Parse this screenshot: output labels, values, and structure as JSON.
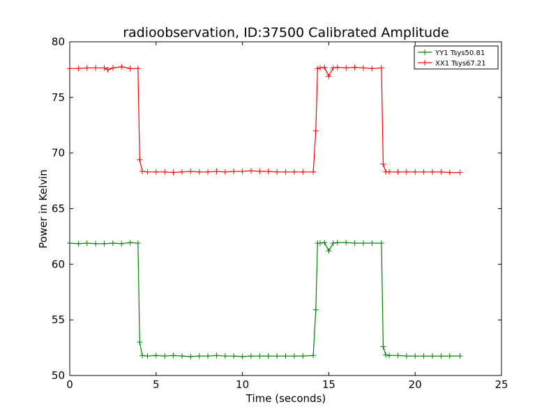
{
  "chart_data": {
    "type": "line",
    "title": "radioobservation, ID:37500 Calibrated Amplitude",
    "xlabel": "Time (seconds)",
    "ylabel": "Power in Kelvin",
    "xlim": [
      0,
      25
    ],
    "ylim": [
      50,
      80
    ],
    "xticks": [
      0,
      5,
      10,
      15,
      20,
      25
    ],
    "yticks": [
      50,
      55,
      60,
      65,
      70,
      75,
      80
    ],
    "grid": false,
    "legend_position": "top-right",
    "marker": "+",
    "series": [
      {
        "name": "YY1 Tsys50.81",
        "color": "#008000",
        "x": [
          0.0,
          0.5,
          1.0,
          1.5,
          2.0,
          2.5,
          3.0,
          3.5,
          3.95,
          4.05,
          4.2,
          4.5,
          5.0,
          5.5,
          6.0,
          6.5,
          7.0,
          7.5,
          8.0,
          8.5,
          9.0,
          9.5,
          10.0,
          10.5,
          11.0,
          11.5,
          12.0,
          12.5,
          13.0,
          13.5,
          14.1,
          14.25,
          14.35,
          14.5,
          14.75,
          15.0,
          15.25,
          15.5,
          16.0,
          16.5,
          17.0,
          17.5,
          18.05,
          18.15,
          18.3,
          18.5,
          19.0,
          19.5,
          20.0,
          20.5,
          21.0,
          21.5,
          22.0,
          22.6
        ],
        "y": [
          61.9,
          61.85,
          61.9,
          61.85,
          61.85,
          61.9,
          61.85,
          61.95,
          61.9,
          53.0,
          51.8,
          51.75,
          51.8,
          51.75,
          51.8,
          51.75,
          51.7,
          51.75,
          51.75,
          51.8,
          51.75,
          51.75,
          51.7,
          51.75,
          51.75,
          51.75,
          51.75,
          51.75,
          51.75,
          51.75,
          51.8,
          55.9,
          61.9,
          61.9,
          61.95,
          61.2,
          61.9,
          61.95,
          61.95,
          61.9,
          61.9,
          61.9,
          61.9,
          52.6,
          51.85,
          51.8,
          51.8,
          51.75,
          51.75,
          51.75,
          51.75,
          51.75,
          51.75,
          51.75
        ]
      },
      {
        "name": "XX1 Tsys67.21",
        "color": "#ff0000",
        "x": [
          0.0,
          0.5,
          1.0,
          1.5,
          2.0,
          2.2,
          2.5,
          3.0,
          3.5,
          3.95,
          4.05,
          4.2,
          4.5,
          5.0,
          5.5,
          6.0,
          6.5,
          7.0,
          7.5,
          8.0,
          8.5,
          9.0,
          9.5,
          10.0,
          10.5,
          11.0,
          11.5,
          12.0,
          12.5,
          13.0,
          13.5,
          14.1,
          14.25,
          14.35,
          14.5,
          14.75,
          15.0,
          15.25,
          15.5,
          16.0,
          16.5,
          17.0,
          17.5,
          18.05,
          18.15,
          18.3,
          18.5,
          19.0,
          19.5,
          20.0,
          20.5,
          21.0,
          21.5,
          22.0,
          22.6
        ],
        "y": [
          77.6,
          77.6,
          77.65,
          77.65,
          77.65,
          77.5,
          77.65,
          77.75,
          77.6,
          77.6,
          69.4,
          68.35,
          68.3,
          68.3,
          68.3,
          68.25,
          68.3,
          68.35,
          68.3,
          68.3,
          68.35,
          68.3,
          68.35,
          68.35,
          68.4,
          68.35,
          68.35,
          68.3,
          68.3,
          68.3,
          68.3,
          68.3,
          72.0,
          77.6,
          77.65,
          77.7,
          76.9,
          77.65,
          77.7,
          77.65,
          77.7,
          77.65,
          77.6,
          77.65,
          69.0,
          68.3,
          68.3,
          68.3,
          68.3,
          68.3,
          68.3,
          68.3,
          68.3,
          68.25,
          68.25
        ]
      }
    ]
  }
}
